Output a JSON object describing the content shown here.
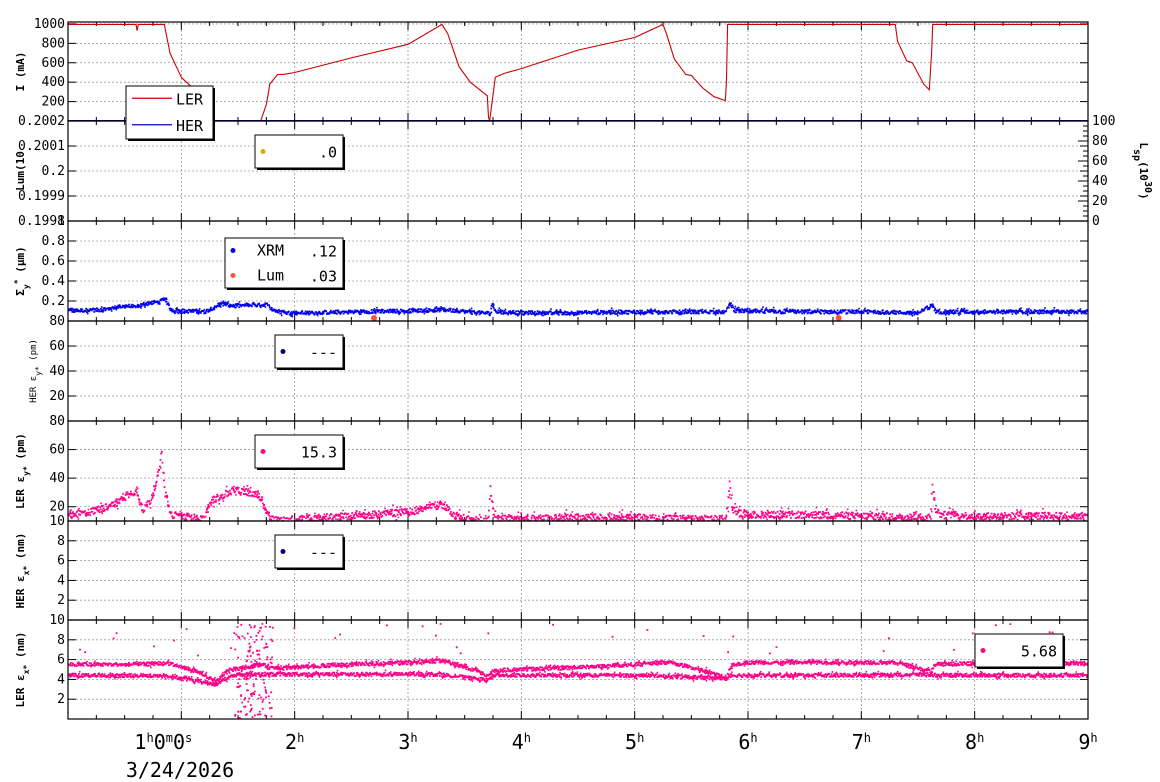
{
  "chart_data": {
    "type": "line",
    "x_axis": {
      "unit": "h",
      "range": [
        0,
        9
      ],
      "ticks": [
        {
          "value": 1,
          "label": "1",
          "sup": "h",
          "rest": "0",
          "sup2": "m",
          "rest2": "0",
          "sup3": "s"
        },
        {
          "value": 2,
          "label": "2",
          "sup": "h"
        },
        {
          "value": 3,
          "label": "3",
          "sup": "h"
        },
        {
          "value": 4,
          "label": "4",
          "sup": "h"
        },
        {
          "value": 5,
          "label": "5",
          "sup": "h"
        },
        {
          "value": 6,
          "label": "6",
          "sup": "h"
        },
        {
          "value": 7,
          "label": "7",
          "sup": "h"
        },
        {
          "value": 8,
          "label": "8",
          "sup": "h"
        },
        {
          "value": 9,
          "label": "9",
          "sup": "h"
        }
      ],
      "date": "3/24/2026"
    },
    "panels": [
      {
        "id": "current",
        "ylabel": "I (mA)",
        "ylim": [
          0,
          1020
        ],
        "yticks": [
          "200",
          "400",
          "600",
          "800",
          "1000"
        ],
        "ytick_values": [
          200,
          400,
          600,
          800,
          1000
        ],
        "legend": [
          {
            "name": "LER",
            "color": "#cc0000",
            "marker": "line"
          },
          {
            "name": "HER",
            "color": "#0000cc",
            "marker": "line"
          }
        ],
        "series": [
          {
            "name": "LER",
            "color": "#cc0000",
            "x": [
              0.0,
              0.6,
              0.61,
              0.62,
              0.85,
              0.9,
              1.0,
              1.1,
              1.2,
              1.25,
              1.7,
              1.75,
              1.77,
              1.78,
              1.85,
              1.9,
              2.0,
              2.5,
              3.0,
              3.3,
              3.35,
              3.45,
              3.55,
              3.7,
              3.71,
              3.72,
              3.77,
              3.85,
              4.0,
              4.5,
              5.0,
              5.25,
              5.28,
              5.35,
              5.45,
              5.5,
              5.6,
              5.7,
              5.8,
              5.81,
              5.82,
              6.0,
              6.5,
              7.0,
              7.3,
              7.32,
              7.4,
              7.45,
              7.55,
              7.6,
              7.62,
              7.63,
              8.0,
              8.5,
              9.0
            ],
            "y": [
              995,
              995,
              930,
              995,
              995,
              700,
              450,
              340,
              270,
              0,
              0,
              170,
              300,
              380,
              480,
              480,
              500,
              650,
              790,
              995,
              900,
              560,
              400,
              260,
              40,
              0,
              450,
              490,
              540,
              730,
              860,
              995,
              900,
              640,
              480,
              470,
              340,
              250,
              210,
              420,
              995,
              995,
              995,
              995,
              995,
              820,
              620,
              600,
              380,
              320,
              700,
              995,
              995,
              995,
              995
            ]
          },
          {
            "name": "HER",
            "color": "#0000cc",
            "x": [
              0,
              9
            ],
            "y": [
              0,
              0
            ]
          }
        ]
      },
      {
        "id": "luminosity",
        "ylabel": "Lum(10",
        "ylim": [
          0.1998,
          0.2002
        ],
        "yticks": [
          "0.1998",
          "0.1999",
          "0.2",
          "0.2001",
          "0.2002"
        ],
        "ytick_values": [
          0.1998,
          0.1999,
          0.2,
          0.2001,
          0.2002
        ],
        "right_ylabel": "L",
        "right_ylabel_sub": "sp",
        "right_ylabel_tail": "(10",
        "right_ylabel_sup": "30",
        "right_ylabel_end": ")",
        "right_yticks": [
          "0",
          "20",
          "40",
          "60",
          "80",
          "100"
        ],
        "right_ytick_values": [
          0,
          20,
          40,
          60,
          80,
          100
        ],
        "right_ylim": [
          0,
          100
        ],
        "legend": [
          {
            "name": "",
            "value": ".0",
            "color": "#ddaa00"
          }
        ],
        "series": []
      },
      {
        "id": "sigma_y",
        "ylabel": "Σ",
        "ylabel_sub": "y",
        "ylabel_sup": "*",
        "ylabel_unit": " (μm)",
        "ylim": [
          0,
          1.0
        ],
        "yticks": [
          "0.2",
          "0.4",
          "0.6",
          "0.8",
          "1"
        ],
        "ytick_values": [
          0.2,
          0.4,
          0.6,
          0.8,
          1.0
        ],
        "legend": [
          {
            "name": "XRM",
            "value": ".12",
            "color": "#0000ee"
          },
          {
            "name": "Lum",
            "value": ".03",
            "color": "#ff5533"
          }
        ],
        "series": [
          {
            "name": "XRM",
            "color": "#0000ee",
            "x": [
              0.0,
              0.3,
              0.5,
              0.6,
              0.7,
              0.8,
              0.85,
              0.9,
              1.0,
              1.2,
              1.3,
              1.35,
              1.45,
              1.75,
              1.8,
              1.9,
              2.0,
              2.5,
              3.0,
              3.3,
              3.45,
              3.6,
              3.72,
              3.73,
              3.78,
              4.0,
              4.5,
              5.0,
              5.5,
              5.8,
              5.83,
              5.88,
              6.0,
              6.5,
              7.0,
              7.5,
              7.62,
              7.65,
              7.7,
              8.0,
              8.5,
              9.0
            ],
            "y": [
              0.11,
              0.12,
              0.16,
              0.15,
              0.19,
              0.2,
              0.23,
              0.12,
              0.11,
              0.1,
              0.16,
              0.18,
              0.16,
              0.17,
              0.12,
              0.09,
              0.09,
              0.1,
              0.11,
              0.12,
              0.11,
              0.09,
              0.09,
              0.17,
              0.1,
              0.09,
              0.09,
              0.1,
              0.1,
              0.1,
              0.18,
              0.11,
              0.11,
              0.1,
              0.1,
              0.09,
              0.17,
              0.1,
              0.1,
              0.1,
              0.1,
              0.1
            ]
          },
          {
            "name": "Lum",
            "color": "#ff5533",
            "x": [
              2.7,
              6.8
            ],
            "y": [
              0.03,
              0.03
            ]
          }
        ]
      },
      {
        "id": "her_eps_y",
        "ylabel": "HER ε",
        "ylabel_sub": "y*",
        "ylabel_unit": " (pm)",
        "ylim": [
          0,
          80
        ],
        "yticks": [
          "20",
          "40",
          "60",
          "80"
        ],
        "ytick_values": [
          20,
          40,
          60,
          80
        ],
        "legend": [
          {
            "name": "",
            "value": "---",
            "color": "#000080"
          }
        ],
        "series": []
      },
      {
        "id": "ler_eps_y",
        "ylabel": "LER ε",
        "ylabel_sub": "y*",
        "ylabel_unit": " (pm)",
        "ylim": [
          10,
          80
        ],
        "yticks": [
          "10",
          "20",
          "40",
          "60",
          "80"
        ],
        "ytick_values": [
          10,
          20,
          40,
          60,
          80
        ],
        "legend": [
          {
            "name": "",
            "value": "15.3",
            "color": "#ff0088"
          }
        ],
        "series": [
          {
            "name": "LER",
            "color": "#ff0088",
            "x": [
              0.0,
              0.2,
              0.4,
              0.5,
              0.6,
              0.65,
              0.72,
              0.78,
              0.82,
              0.85,
              0.9,
              1.0,
              1.2,
              1.25,
              1.35,
              1.45,
              1.65,
              1.7,
              1.75,
              1.8,
              1.9,
              2.0,
              2.5,
              3.0,
              3.3,
              3.4,
              3.5,
              3.7,
              3.72,
              3.74,
              3.78,
              3.85,
              4.0,
              4.5,
              5.0,
              5.5,
              5.8,
              5.83,
              5.85,
              5.9,
              6.0,
              6.5,
              7.0,
              7.6,
              7.62,
              7.65,
              7.7,
              8.0,
              8.5,
              9.0
            ],
            "y": [
              15,
              17,
              22,
              28,
              32,
              18,
              25,
              40,
              58,
              30,
              15,
              14,
              12,
              25,
              28,
              32,
              30,
              25,
              15,
              12,
              11,
              12,
              14,
              17,
              22,
              15,
              12,
              11,
              35,
              18,
              13,
              12,
              12,
              13,
              13,
              12,
              12,
              38,
              20,
              16,
              15,
              15,
              14,
              13,
              35,
              18,
              15,
              14,
              14,
              14
            ]
          }
        ]
      },
      {
        "id": "her_eps_x",
        "ylabel": "HER ε",
        "ylabel_sub": "x*",
        "ylabel_unit": " (nm)",
        "ylim": [
          0,
          10
        ],
        "yticks": [
          "2",
          "4",
          "6",
          "8"
        ],
        "ytick_values": [
          2,
          4,
          6,
          8
        ],
        "legend": [
          {
            "name": "",
            "value": "---",
            "color": "#000080"
          }
        ],
        "series": []
      },
      {
        "id": "ler_eps_x",
        "ylabel": "LER ε",
        "ylabel_sub": "x*",
        "ylabel_unit": " (nm)",
        "ylim": [
          0,
          10
        ],
        "yticks": [
          "2",
          "4",
          "6",
          "8",
          "10"
        ],
        "ytick_values": [
          2,
          4,
          6,
          8,
          10
        ],
        "legend": [
          {
            "name": "",
            "value": "5.68",
            "color": "#ff0088"
          }
        ],
        "series": [
          {
            "name": "upper",
            "color": "#ff0088",
            "x": [
              0.0,
              0.5,
              0.9,
              1.0,
              1.1,
              1.2,
              1.3,
              1.4,
              1.5,
              1.6,
              1.7,
              1.8,
              2.0,
              2.5,
              3.0,
              3.3,
              3.5,
              3.7,
              3.75,
              3.8,
              4.0,
              4.5,
              5.0,
              5.3,
              5.5,
              5.7,
              5.8,
              5.85,
              6.0,
              6.5,
              7.0,
              7.3,
              7.5,
              7.6,
              7.65,
              8.0,
              8.5,
              9.0
            ],
            "y": [
              5.6,
              5.6,
              5.7,
              5.3,
              5.0,
              4.5,
              3.8,
              5.0,
              5.2,
              5.4,
              5.6,
              5.2,
              5.3,
              5.6,
              5.8,
              6.0,
              5.3,
              4.5,
              5.0,
              5.0,
              5.1,
              5.3,
              5.6,
              5.8,
              5.3,
              4.6,
              4.2,
              5.6,
              5.8,
              5.8,
              5.8,
              5.8,
              5.2,
              4.9,
              5.6,
              5.7,
              5.7,
              5.7
            ]
          },
          {
            "name": "lower",
            "color": "#ff0088",
            "x": [
              0.0,
              0.9,
              1.2,
              1.3,
              1.4,
              1.5,
              3.25,
              3.35,
              3.7,
              3.75,
              5.15,
              5.25,
              5.8,
              5.85,
              7.0,
              7.1,
              7.6,
              7.65,
              9.0
            ],
            "y": [
              4.5,
              4.4,
              3.8,
              3.6,
              4.3,
              4.6,
              4.6,
              4.5,
              4.0,
              4.5,
              4.5,
              4.4,
              4.2,
              4.5,
              4.5,
              4.5,
              4.6,
              4.5,
              4.5
            ]
          }
        ]
      }
    ]
  }
}
